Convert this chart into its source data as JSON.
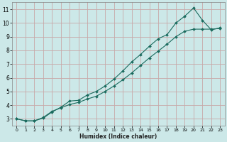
{
  "title": "",
  "xlabel": "Humidex (Indice chaleur)",
  "ylabel": "",
  "bg_color": "#cce8e8",
  "grid_color": "#c8a8a8",
  "line_color": "#1a6b5e",
  "marker": "D",
  "marker_size": 2.0,
  "xlim": [
    -0.5,
    23.5
  ],
  "ylim": [
    2.5,
    11.5
  ],
  "xticks": [
    0,
    1,
    2,
    3,
    4,
    5,
    6,
    7,
    8,
    9,
    10,
    11,
    12,
    13,
    14,
    15,
    16,
    17,
    18,
    19,
    20,
    21,
    22,
    23
  ],
  "yticks": [
    3,
    4,
    5,
    6,
    7,
    8,
    9,
    10,
    11
  ],
  "line1_x": [
    0,
    1,
    2,
    3,
    4,
    5,
    6,
    7,
    8,
    9,
    10,
    11,
    12,
    13,
    14,
    15,
    16,
    17,
    18,
    19,
    20,
    21,
    22,
    23
  ],
  "line1_y": [
    3.0,
    2.85,
    2.85,
    3.05,
    3.5,
    3.85,
    4.3,
    4.35,
    4.75,
    5.0,
    5.4,
    5.9,
    6.5,
    7.15,
    7.7,
    8.3,
    8.85,
    9.15,
    10.0,
    10.5,
    11.1,
    10.2,
    9.5,
    9.65
  ],
  "line2_x": [
    0,
    1,
    2,
    3,
    4,
    5,
    6,
    7,
    8,
    9,
    10,
    11,
    12,
    13,
    14,
    15,
    16,
    17,
    18,
    19,
    20,
    21,
    22,
    23
  ],
  "line2_y": [
    3.0,
    2.85,
    2.85,
    3.1,
    3.55,
    3.8,
    4.05,
    4.2,
    4.45,
    4.65,
    5.0,
    5.4,
    5.85,
    6.35,
    6.9,
    7.45,
    7.95,
    8.45,
    9.0,
    9.4,
    9.55,
    9.55,
    9.55,
    9.6
  ]
}
